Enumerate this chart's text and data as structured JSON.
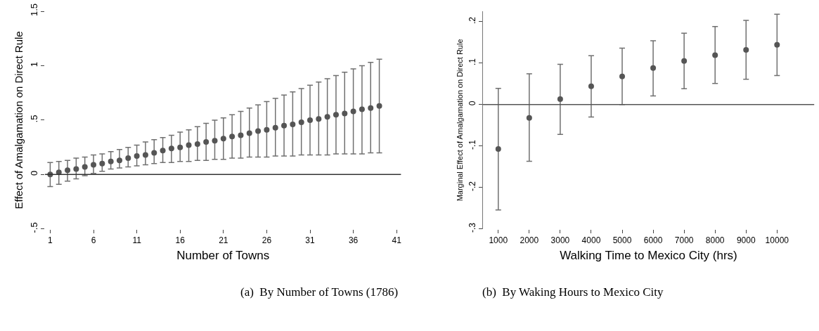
{
  "chart_data": [
    {
      "type": "scatter",
      "xlabel": "Number of Towns",
      "ylabel": "Effect of Amalgamation on Direct Rule",
      "marker": "circle",
      "color": "#555555",
      "x": [
        1,
        2,
        3,
        4,
        5,
        6,
        7,
        8,
        9,
        10,
        11,
        12,
        13,
        14,
        15,
        16,
        17,
        18,
        19,
        20,
        21,
        22,
        23,
        24,
        25,
        26,
        27,
        28,
        29,
        30,
        31,
        32,
        33,
        34,
        35,
        36,
        37,
        38,
        39
      ],
      "values": [
        0,
        0.02,
        0.04,
        0.05,
        0.07,
        0.09,
        0.1,
        0.12,
        0.13,
        0.15,
        0.17,
        0.18,
        0.2,
        0.22,
        0.24,
        0.25,
        0.27,
        0.28,
        0.3,
        0.31,
        0.33,
        0.35,
        0.36,
        0.38,
        0.4,
        0.41,
        0.43,
        0.45,
        0.46,
        0.48,
        0.5,
        0.51,
        0.53,
        0.55,
        0.56,
        0.58,
        0.6,
        0.61,
        0.63
      ],
      "errors": [
        [
          -0.11,
          0.11
        ],
        [
          -0.09,
          0.12
        ],
        [
          -0.06,
          0.13
        ],
        [
          -0.04,
          0.15
        ],
        [
          -0.01,
          0.16
        ],
        [
          0.01,
          0.18
        ],
        [
          0.03,
          0.19
        ],
        [
          0.05,
          0.21
        ],
        [
          0.06,
          0.23
        ],
        [
          0.07,
          0.25
        ],
        [
          0.08,
          0.27
        ],
        [
          0.09,
          0.3
        ],
        [
          0.1,
          0.32
        ],
        [
          0.11,
          0.34
        ],
        [
          0.11,
          0.36
        ],
        [
          0.12,
          0.39
        ],
        [
          0.12,
          0.41
        ],
        [
          0.13,
          0.44
        ],
        [
          0.13,
          0.47
        ],
        [
          0.14,
          0.5
        ],
        [
          0.14,
          0.52
        ],
        [
          0.15,
          0.55
        ],
        [
          0.15,
          0.58
        ],
        [
          0.16,
          0.61
        ],
        [
          0.16,
          0.64
        ],
        [
          0.16,
          0.67
        ],
        [
          0.17,
          0.7
        ],
        [
          0.17,
          0.73
        ],
        [
          0.17,
          0.76
        ],
        [
          0.18,
          0.79
        ],
        [
          0.18,
          0.82
        ],
        [
          0.18,
          0.85
        ],
        [
          0.18,
          0.88
        ],
        [
          0.19,
          0.91
        ],
        [
          0.19,
          0.94
        ],
        [
          0.19,
          0.97
        ],
        [
          0.19,
          1.0
        ],
        [
          0.2,
          1.03
        ],
        [
          0.2,
          1.06
        ]
      ],
      "xlim": [
        0.4,
        41.5
      ],
      "xticks": [
        1,
        6,
        11,
        16,
        21,
        26,
        31,
        36,
        41
      ],
      "ylim": [
        -0.5,
        1.5
      ],
      "yticks": [
        {
          "value": -0.5,
          "label": "-.5"
        },
        0,
        {
          "value": 0.5,
          "label": ".5"
        },
        1,
        1.5
      ],
      "ref_lines": [
        {
          "axis": "y",
          "value": 0,
          "color": "#333333"
        }
      ],
      "annotations": [
        "(a)  By Number of Towns (1786)"
      ]
    },
    {
      "type": "scatter",
      "xlabel": "Walking Time to Mexico City (hrs)",
      "ylabel": "Marginal Effect of Amalgamation on Direct Rule",
      "marker": "circle",
      "color": "#555555",
      "x": [
        1000,
        2000,
        3000,
        4000,
        5000,
        6000,
        7000,
        8000,
        9000,
        10000
      ],
      "values": [
        -0.107,
        -0.032,
        0.013,
        0.044,
        0.068,
        0.088,
        0.105,
        0.119,
        0.132,
        0.144
      ],
      "errors": [
        [
          -0.254,
          0.039
        ],
        [
          -0.137,
          0.074
        ],
        [
          -0.072,
          0.097
        ],
        [
          -0.03,
          0.118
        ],
        [
          0.0,
          0.136
        ],
        [
          0.021,
          0.154
        ],
        [
          0.038,
          0.172
        ],
        [
          0.051,
          0.188
        ],
        [
          0.061,
          0.203
        ],
        [
          0.07,
          0.218
        ]
      ],
      "xlim": [
        500,
        11200
      ],
      "xticks": [
        1000,
        2000,
        3000,
        4000,
        5000,
        6000,
        7000,
        8000,
        9000,
        10000
      ],
      "ylim": [
        -0.3,
        0.225
      ],
      "yticks": [
        {
          "value": -0.3,
          "label": "-.3"
        },
        {
          "value": -0.2,
          "label": "-.2"
        },
        {
          "value": -0.1,
          "label": "-.1"
        },
        0,
        {
          "value": 0.1,
          "label": ".1"
        },
        {
          "value": 0.2,
          "label": ".2"
        }
      ],
      "ref_lines": [
        {
          "axis": "y",
          "value": 0,
          "color": "#555555"
        }
      ],
      "annotations": [
        "(b)  By Waking Hours to Mexico City"
      ]
    }
  ]
}
